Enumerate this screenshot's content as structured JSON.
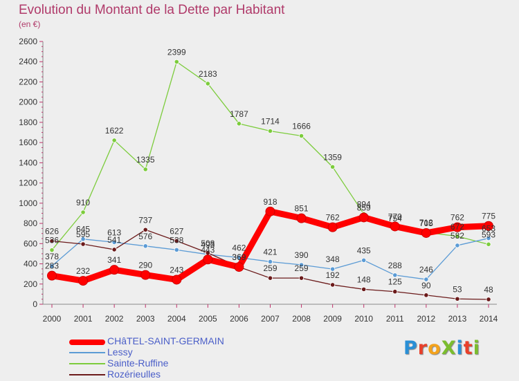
{
  "title": "Evolution du Montant de la Dette par Habitant",
  "subtitle": "(en €)",
  "logo": {
    "text": "ProXiti",
    "colors": [
      "#2a8fd6",
      "#e8402b",
      "#f3a21c",
      "#7bbd2e",
      "#2a8fd6",
      "#e8402b",
      "#7bbd2e"
    ]
  },
  "chart_data": {
    "type": "line",
    "title": "Evolution du Montant de la Dette par Habitant",
    "subtitle": "(en €)",
    "xlabel": "",
    "ylabel": "",
    "x": [
      "2000",
      "2001",
      "2002",
      "2003",
      "2004",
      "2005",
      "2006",
      "2007",
      "2008",
      "2009",
      "2010",
      "2011",
      "2012",
      "2013",
      "2014"
    ],
    "ylim": [
      0,
      2600
    ],
    "yticks": [
      0,
      200,
      400,
      600,
      800,
      1000,
      1200,
      1400,
      1600,
      1800,
      2000,
      2200,
      2400,
      2600
    ],
    "grid": false,
    "legend_position": "bottom-left",
    "series": [
      {
        "name": "CHâTEL-SAINT-GERMAIN",
        "color": "#ff0000",
        "values": [
          283,
          232,
          341,
          290,
          243,
          443,
          369,
          918,
          851,
          762,
          859,
          770,
          705,
          762,
          775
        ]
      },
      {
        "name": "Lessy",
        "color": "#5b9bd5",
        "values": [
          378,
          645,
          613,
          576,
          538,
          493,
          462,
          421,
          390,
          348,
          435,
          288,
          246,
          582,
          653
        ]
      },
      {
        "name": "Sainte-Ruffine",
        "color": "#7ccc3c",
        "values": [
          536,
          910,
          1622,
          1335,
          2399,
          2183,
          1787,
          1714,
          1666,
          1359,
          894,
          754,
          712,
          672,
          593
        ]
      },
      {
        "name": "Rozérieulles",
        "color": "#6b1a1a",
        "values": [
          626,
          595,
          541,
          737,
          627,
          508,
          369,
          259,
          259,
          192,
          148,
          125,
          90,
          53,
          48
        ]
      }
    ]
  }
}
